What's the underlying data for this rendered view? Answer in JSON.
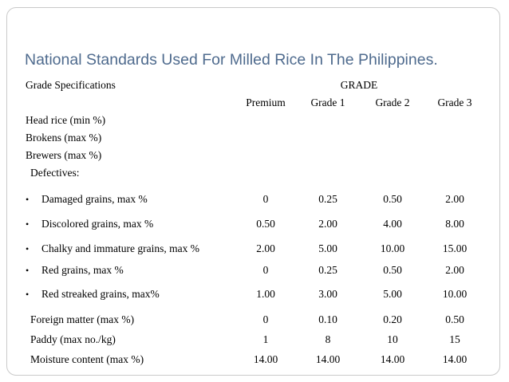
{
  "title": "National Standards Used For Milled Rice In The Philippines.",
  "header": {
    "spec_label": "Grade Specifications",
    "grade_label": "GRADE",
    "columns": [
      "Premium",
      "Grade 1",
      "Grade 2",
      "Grade 3"
    ]
  },
  "labels_only": [
    "Head rice (min %)",
    "Brokens (max %)",
    "Brewers (max %)"
  ],
  "defectives_label": "Defectives:",
  "bullet_char": "•",
  "bullet_rows": [
    {
      "label": "Damaged grains, max %",
      "values": [
        "0",
        "0.25",
        "0.50",
        "2.00"
      ]
    },
    {
      "label": "Discolored grains, max %",
      "values": [
        "0.50",
        "2.00",
        "4.00",
        "8.00"
      ]
    },
    {
      "label": "Chalky and immature grains, max %",
      "values": [
        "2.00",
        "5.00",
        "10.00",
        "15.00"
      ]
    },
    {
      "label": "Red grains, max %",
      "values": [
        "0",
        "0.25",
        "0.50",
        "2.00"
      ]
    },
    {
      "label": "Red streaked grains, max%",
      "values": [
        "1.00",
        "3.00",
        "5.00",
        "10.00"
      ]
    }
  ],
  "plain_rows": [
    {
      "label": "Foreign matter (max %)",
      "values": [
        "0",
        "0.10",
        "0.20",
        "0.50"
      ]
    },
    {
      "label": "Paddy (max no./kg)",
      "values": [
        "1",
        "8",
        "10",
        "15"
      ]
    },
    {
      "label": "Moisture content (max %)",
      "values": [
        "14.00",
        "14.00",
        "14.00",
        "14.00"
      ]
    }
  ]
}
